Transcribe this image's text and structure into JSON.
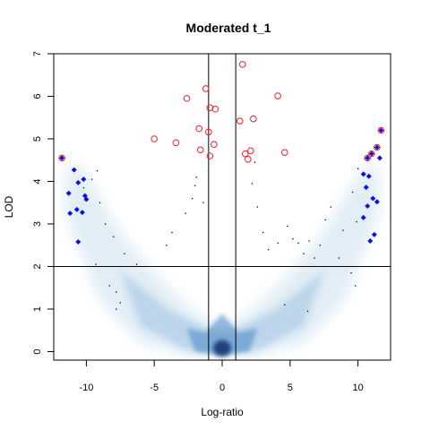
{
  "chart_data": {
    "type": "scatter",
    "title": "Moderated t_1",
    "xlabel": "Log-ratio",
    "ylabel": "LOD",
    "xlim": [
      -12.4,
      12.4
    ],
    "ylim": [
      -0.2,
      7.0
    ],
    "x_ticks": [
      -10,
      -5,
      0,
      5,
      10
    ],
    "y_ticks": [
      0,
      1,
      2,
      3,
      4,
      5,
      6,
      7
    ],
    "x_tick_labels": [
      "-10",
      "-5",
      "0",
      "5",
      "10"
    ],
    "y_tick_labels": [
      "0",
      "1",
      "2",
      "3",
      "4",
      "5",
      "6",
      "7"
    ],
    "reference_lines": {
      "vertical": [
        -1,
        1
      ],
      "horizontal": [
        2
      ]
    },
    "density_color": "#3a7fc1",
    "highlight_colors": {
      "large_lod": "#e8202a",
      "large_ratio": "#0a14d6"
    },
    "series": [
      {
        "style": "circle",
        "points": [
          [
            1.5,
            6.75
          ],
          [
            -1.2,
            6.18
          ],
          [
            -2.6,
            5.95
          ],
          [
            4.1,
            6.01
          ],
          [
            -0.9,
            5.73
          ],
          [
            -0.5,
            5.7
          ],
          [
            1.3,
            5.42
          ],
          [
            2.3,
            5.47
          ],
          [
            -1.7,
            5.24
          ],
          [
            -1.0,
            5.16
          ],
          [
            -5.0,
            5.0
          ],
          [
            -3.4,
            4.91
          ],
          [
            -0.6,
            4.87
          ],
          [
            -1.6,
            4.74
          ],
          [
            -0.9,
            4.6
          ],
          [
            1.7,
            4.65
          ],
          [
            2.1,
            4.72
          ],
          [
            1.9,
            4.52
          ],
          [
            4.6,
            4.68
          ],
          [
            -11.8,
            4.55
          ],
          [
            11.7,
            5.2
          ],
          [
            11.4,
            4.8
          ],
          [
            11.0,
            4.65
          ],
          [
            10.7,
            4.55
          ]
        ]
      },
      {
        "style": "diamond",
        "points": [
          [
            -11.8,
            4.55
          ],
          [
            -10.9,
            4.27
          ],
          [
            -10.6,
            3.97
          ],
          [
            -10.2,
            4.05
          ],
          [
            -11.3,
            3.72
          ],
          [
            -10.1,
            3.66
          ],
          [
            -10.0,
            3.58
          ],
          [
            -10.7,
            3.34
          ],
          [
            -10.3,
            3.27
          ],
          [
            -11.2,
            3.25
          ],
          [
            -10.6,
            2.58
          ],
          [
            10.4,
            4.17
          ],
          [
            10.8,
            4.12
          ],
          [
            10.6,
            3.86
          ],
          [
            10.7,
            3.42
          ],
          [
            11.1,
            3.6
          ],
          [
            11.4,
            3.52
          ],
          [
            10.4,
            3.15
          ],
          [
            11.2,
            2.75
          ],
          [
            10.9,
            2.6
          ],
          [
            11.7,
            5.2
          ],
          [
            11.4,
            4.8
          ],
          [
            11.0,
            4.65
          ],
          [
            10.7,
            4.55
          ],
          [
            11.6,
            4.55
          ]
        ]
      },
      {
        "style": "dot",
        "points": [
          [
            -9.6,
            4.05
          ],
          [
            -9.2,
            4.25
          ],
          [
            -10.2,
            3.85
          ],
          [
            -9.0,
            3.5
          ],
          [
            -8.6,
            3.0
          ],
          [
            -8.0,
            2.7
          ],
          [
            -7.2,
            2.3
          ],
          [
            -6.3,
            2.05
          ],
          [
            -9.3,
            2.05
          ],
          [
            -8.3,
            1.55
          ],
          [
            -7.8,
            1.4
          ],
          [
            -7.5,
            1.15
          ],
          [
            -7.8,
            1.0
          ],
          [
            -4.1,
            2.5
          ],
          [
            -3.7,
            2.8
          ],
          [
            -2.7,
            3.25
          ],
          [
            -2.0,
            3.9
          ],
          [
            -1.4,
            3.5
          ],
          [
            -1.9,
            4.1
          ],
          [
            -2.2,
            3.6
          ],
          [
            2.4,
            4.45
          ],
          [
            2.2,
            3.95
          ],
          [
            2.6,
            3.4
          ],
          [
            3.0,
            2.8
          ],
          [
            3.4,
            2.4
          ],
          [
            4.1,
            2.55
          ],
          [
            4.8,
            2.95
          ],
          [
            5.2,
            2.65
          ],
          [
            5.6,
            2.55
          ],
          [
            6.0,
            2.3
          ],
          [
            6.4,
            2.6
          ],
          [
            6.8,
            2.2
          ],
          [
            7.2,
            2.5
          ],
          [
            7.6,
            3.1
          ],
          [
            8.0,
            3.4
          ],
          [
            8.6,
            2.2
          ],
          [
            8.9,
            2.85
          ],
          [
            9.6,
            3.75
          ],
          [
            9.9,
            3.05
          ],
          [
            10.0,
            4.3
          ],
          [
            9.5,
            1.85
          ],
          [
            9.8,
            1.55
          ],
          [
            6.3,
            0.95
          ],
          [
            4.6,
            1.1
          ]
        ]
      }
    ]
  }
}
